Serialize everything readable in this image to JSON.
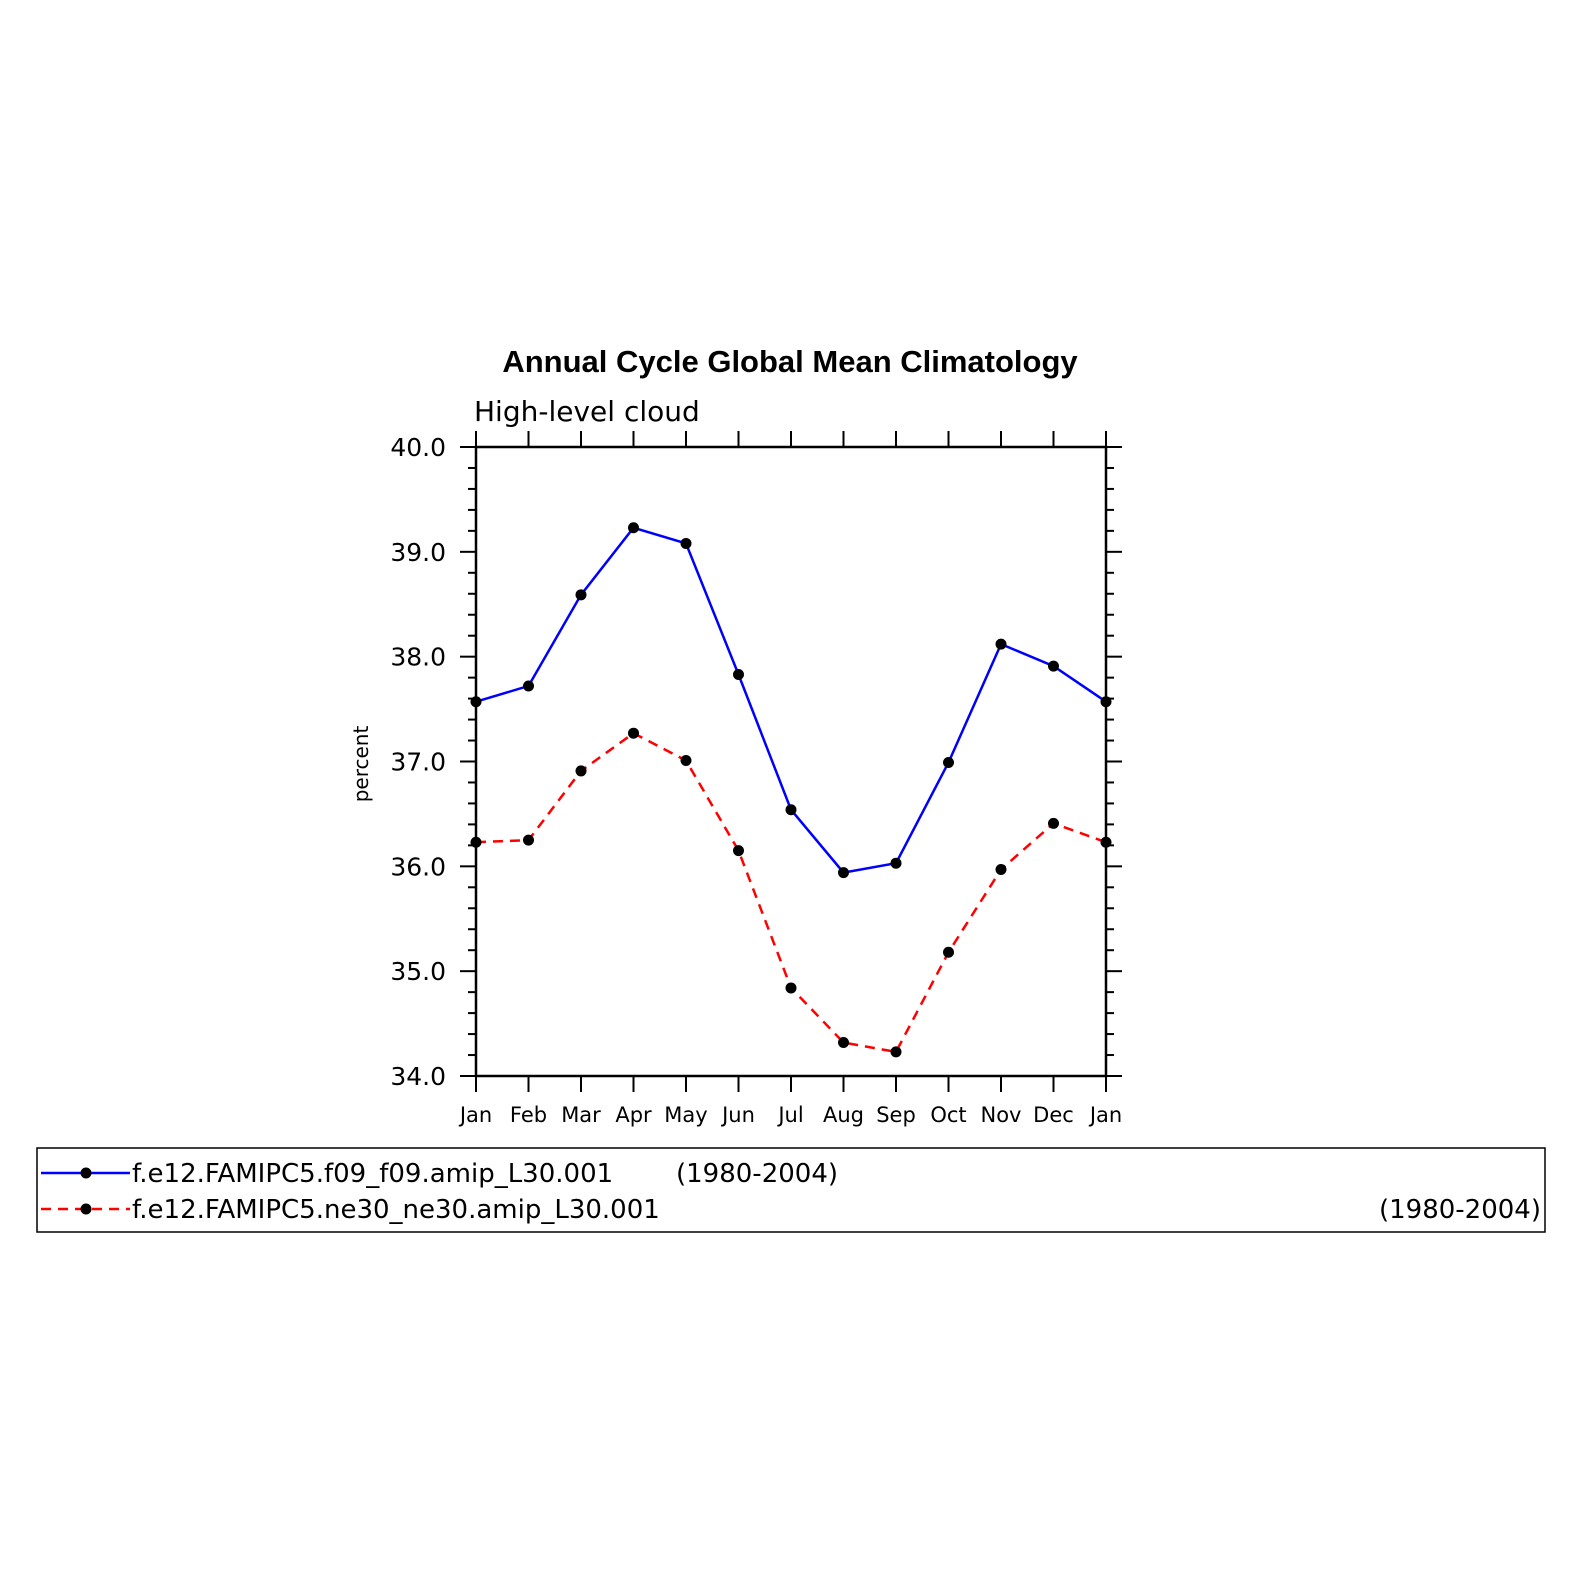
{
  "chart_data": {
    "type": "line",
    "title": "Annual Cycle Global Mean Climatology",
    "subtitle": "High-level cloud",
    "xlabel": "",
    "ylabel": "percent",
    "categories": [
      "Jan",
      "Feb",
      "Mar",
      "Apr",
      "May",
      "Jun",
      "Jul",
      "Aug",
      "Sep",
      "Oct",
      "Nov",
      "Dec",
      "Jan"
    ],
    "ylim": [
      34.0,
      40.0
    ],
    "yticks": [
      "34.0",
      "35.0",
      "36.0",
      "37.0",
      "38.0",
      "39.0",
      "40.0"
    ],
    "grid": false,
    "legend_position": "bottom",
    "series": [
      {
        "name": "f.e12.FAMIPC5.f09_f09.amip_L30.001",
        "period": "(1980-2004)",
        "color": "#0000ff",
        "dash": "solid",
        "values": [
          37.57,
          37.72,
          38.59,
          39.23,
          39.08,
          37.83,
          36.54,
          35.94,
          36.03,
          36.99,
          38.12,
          37.91,
          37.57
        ]
      },
      {
        "name": "f.e12.FAMIPC5.ne30_ne30.amip_L30.001",
        "period": "(1980-2004)",
        "color": "#ff0000",
        "dash": "dashed",
        "values": [
          36.23,
          36.25,
          36.91,
          37.27,
          37.01,
          36.15,
          34.84,
          34.32,
          34.23,
          35.18,
          35.97,
          36.41,
          36.23
        ]
      }
    ]
  }
}
